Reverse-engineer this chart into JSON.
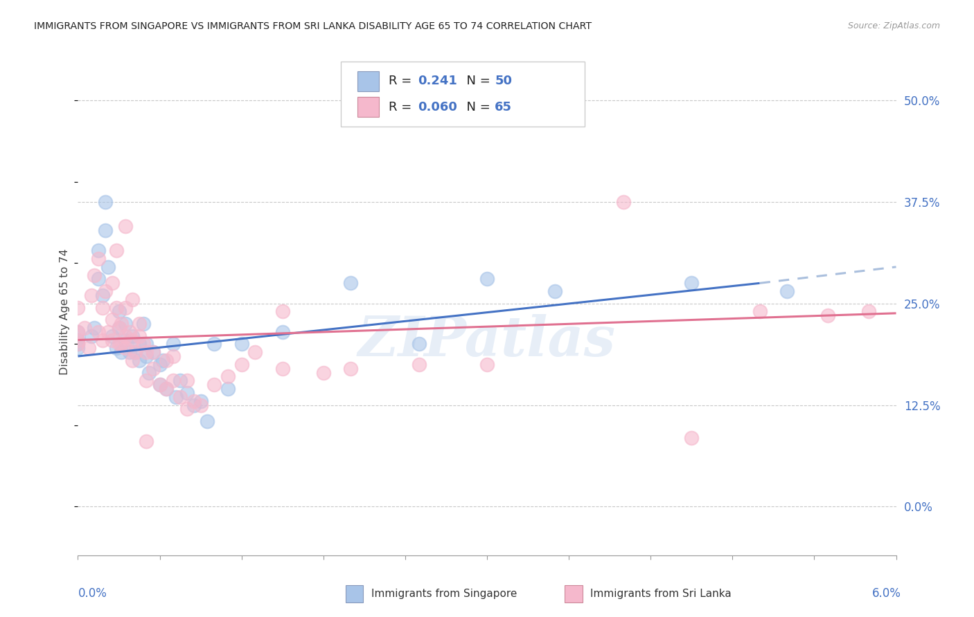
{
  "title": "IMMIGRANTS FROM SINGAPORE VS IMMIGRANTS FROM SRI LANKA DISABILITY AGE 65 TO 74 CORRELATION CHART",
  "source": "Source: ZipAtlas.com",
  "ylabel": "Disability Age 65 to 74",
  "ytick_vals": [
    0.0,
    12.5,
    25.0,
    37.5,
    50.0
  ],
  "ytick_labels": [
    "0.0%",
    "12.5%",
    "25.0%",
    "37.5%",
    "50.0%"
  ],
  "xlim": [
    0.0,
    6.0
  ],
  "ylim": [
    -6.0,
    54.0
  ],
  "color_singapore": "#a8c4e8",
  "color_srilanka": "#f5b8cc",
  "color_line_singapore": "#4472c4",
  "color_line_srilanka": "#e07090",
  "color_line_extrapolated": "#aabfdd",
  "singapore_points": [
    [
      0.0,
      20.5
    ],
    [
      0.0,
      20.0
    ],
    [
      0.0,
      21.5
    ],
    [
      0.0,
      19.5
    ],
    [
      0.1,
      21.0
    ],
    [
      0.12,
      22.0
    ],
    [
      0.15,
      28.0
    ],
    [
      0.15,
      31.5
    ],
    [
      0.18,
      26.0
    ],
    [
      0.2,
      34.0
    ],
    [
      0.2,
      37.5
    ],
    [
      0.22,
      29.5
    ],
    [
      0.25,
      21.0
    ],
    [
      0.28,
      19.5
    ],
    [
      0.3,
      24.0
    ],
    [
      0.3,
      22.0
    ],
    [
      0.32,
      19.0
    ],
    [
      0.35,
      20.5
    ],
    [
      0.35,
      22.5
    ],
    [
      0.38,
      19.0
    ],
    [
      0.4,
      21.0
    ],
    [
      0.42,
      19.0
    ],
    [
      0.45,
      20.0
    ],
    [
      0.45,
      18.0
    ],
    [
      0.48,
      22.5
    ],
    [
      0.5,
      20.0
    ],
    [
      0.5,
      18.5
    ],
    [
      0.52,
      16.5
    ],
    [
      0.55,
      19.0
    ],
    [
      0.6,
      17.5
    ],
    [
      0.6,
      15.0
    ],
    [
      0.62,
      18.0
    ],
    [
      0.65,
      14.5
    ],
    [
      0.7,
      20.0
    ],
    [
      0.72,
      13.5
    ],
    [
      0.75,
      15.5
    ],
    [
      0.8,
      14.0
    ],
    [
      0.85,
      12.5
    ],
    [
      0.9,
      13.0
    ],
    [
      0.95,
      10.5
    ],
    [
      1.0,
      20.0
    ],
    [
      1.1,
      14.5
    ],
    [
      1.2,
      20.0
    ],
    [
      1.5,
      21.5
    ],
    [
      2.0,
      27.5
    ],
    [
      2.5,
      20.0
    ],
    [
      3.0,
      28.0
    ],
    [
      3.5,
      26.5
    ],
    [
      4.5,
      27.5
    ],
    [
      5.2,
      26.5
    ]
  ],
  "srilanka_points": [
    [
      0.0,
      24.5
    ],
    [
      0.0,
      21.5
    ],
    [
      0.0,
      20.5
    ],
    [
      0.0,
      20.0
    ],
    [
      0.05,
      22.0
    ],
    [
      0.08,
      19.5
    ],
    [
      0.1,
      26.0
    ],
    [
      0.12,
      28.5
    ],
    [
      0.15,
      21.5
    ],
    [
      0.18,
      24.5
    ],
    [
      0.18,
      20.5
    ],
    [
      0.2,
      26.5
    ],
    [
      0.22,
      21.5
    ],
    [
      0.25,
      23.0
    ],
    [
      0.25,
      27.5
    ],
    [
      0.25,
      20.5
    ],
    [
      0.28,
      24.5
    ],
    [
      0.3,
      22.0
    ],
    [
      0.3,
      20.0
    ],
    [
      0.32,
      22.5
    ],
    [
      0.32,
      20.0
    ],
    [
      0.35,
      21.0
    ],
    [
      0.35,
      24.5
    ],
    [
      0.35,
      19.5
    ],
    [
      0.38,
      21.5
    ],
    [
      0.4,
      20.5
    ],
    [
      0.4,
      18.0
    ],
    [
      0.42,
      19.0
    ],
    [
      0.45,
      21.0
    ],
    [
      0.45,
      22.5
    ],
    [
      0.48,
      20.0
    ],
    [
      0.5,
      19.0
    ],
    [
      0.5,
      15.5
    ],
    [
      0.55,
      17.0
    ],
    [
      0.6,
      15.0
    ],
    [
      0.65,
      18.0
    ],
    [
      0.7,
      18.5
    ],
    [
      0.7,
      15.5
    ],
    [
      0.75,
      13.5
    ],
    [
      0.8,
      15.5
    ],
    [
      0.85,
      13.0
    ],
    [
      0.9,
      12.5
    ],
    [
      1.0,
      15.0
    ],
    [
      1.1,
      16.0
    ],
    [
      1.2,
      17.5
    ],
    [
      1.3,
      19.0
    ],
    [
      1.5,
      17.0
    ],
    [
      1.5,
      24.0
    ],
    [
      1.8,
      16.5
    ],
    [
      2.0,
      17.0
    ],
    [
      2.5,
      17.5
    ],
    [
      3.0,
      17.5
    ],
    [
      4.0,
      37.5
    ],
    [
      4.5,
      8.5
    ],
    [
      5.0,
      24.0
    ],
    [
      5.5,
      23.5
    ],
    [
      5.8,
      24.0
    ],
    [
      0.15,
      30.5
    ],
    [
      0.28,
      31.5
    ],
    [
      0.35,
      34.5
    ],
    [
      0.4,
      25.5
    ],
    [
      0.55,
      19.0
    ],
    [
      0.65,
      14.5
    ],
    [
      0.8,
      12.0
    ],
    [
      0.5,
      8.0
    ]
  ],
  "sg_trendline": [
    [
      0.0,
      18.5
    ],
    [
      5.0,
      27.5
    ]
  ],
  "sg_trendline_ext": [
    [
      5.0,
      27.5
    ],
    [
      6.0,
      29.5
    ]
  ],
  "sl_trendline": [
    [
      0.0,
      20.5
    ],
    [
      6.0,
      23.8
    ]
  ]
}
